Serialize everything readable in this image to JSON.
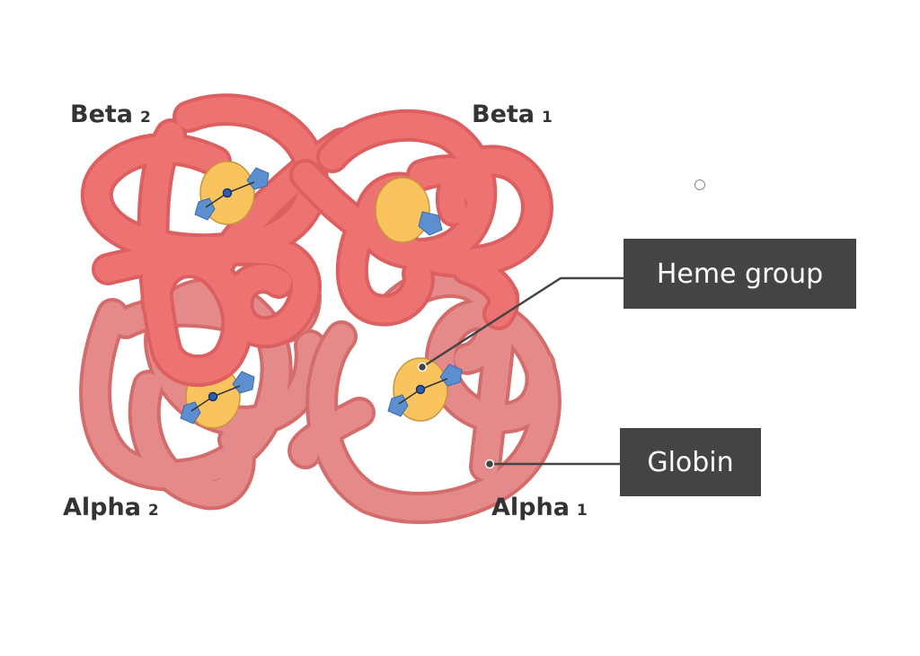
{
  "labels": {
    "beta2": {
      "name": "Beta",
      "sub": "2"
    },
    "beta1": {
      "name": "Beta",
      "sub": "1"
    },
    "alpha2": {
      "name": "Alpha",
      "sub": "2"
    },
    "alpha1": {
      "name": "Alpha",
      "sub": "1"
    }
  },
  "callouts": {
    "heme": "Heme group",
    "globin": "Globin"
  },
  "colors": {
    "globin_dark": "#e46e6e",
    "globin_light": "#e48a8a",
    "heme_disc": "#f9c35e",
    "heme_accent": "#5b8fd0",
    "callout_bg": "#444444"
  }
}
